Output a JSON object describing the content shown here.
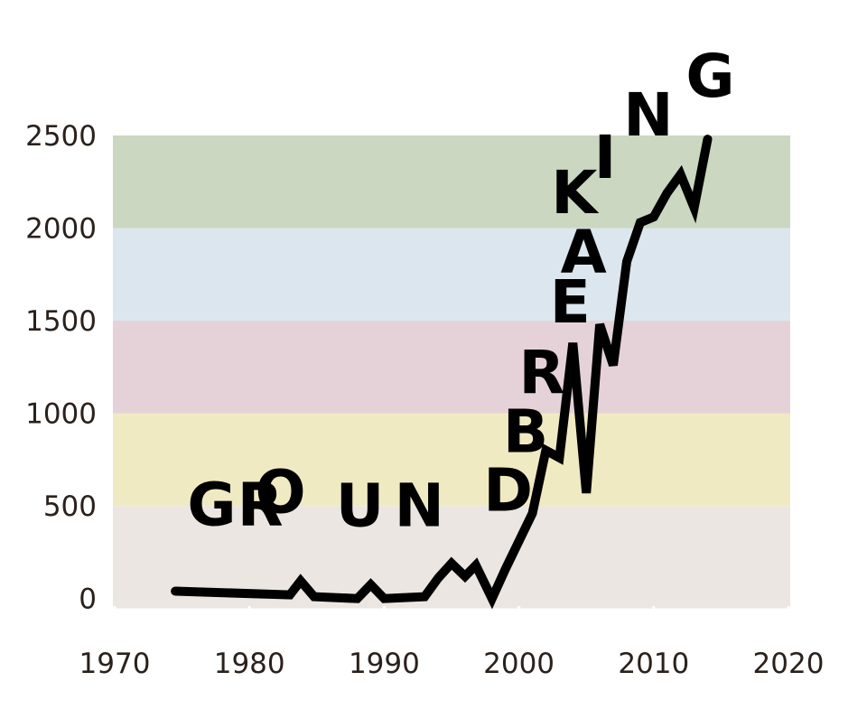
{
  "chart_data": {
    "type": "line",
    "title": "",
    "xlabel": "",
    "ylabel": "",
    "xlim": [
      1970,
      2020
    ],
    "ylim": [
      -60,
      2500
    ],
    "x_ticks": [
      "1970",
      "1980",
      "1990",
      "2000",
      "2010",
      "2020"
    ],
    "y_ticks": [
      "0",
      "500",
      "1000",
      "1500",
      "2000",
      "2500"
    ],
    "grid": false,
    "legend": "none",
    "bands": [
      {
        "from": -60,
        "to": 500,
        "color": "#ebe6e1"
      },
      {
        "from": 500,
        "to": 1000,
        "color": "#f0eac2"
      },
      {
        "from": 1000,
        "to": 1500,
        "color": "#e5d2d8"
      },
      {
        "from": 1500,
        "to": 2000,
        "color": "#dce6ee"
      },
      {
        "from": 2000,
        "to": 2500,
        "color": "#cbd7c0"
      }
    ],
    "line_color": "#000000",
    "series": [
      {
        "values": [
          {
            "x": 1974.5,
            "y": 40
          },
          {
            "x": 1983,
            "y": 20
          },
          {
            "x": 1983.8,
            "y": 95
          },
          {
            "x": 1984.8,
            "y": 10
          },
          {
            "x": 1988,
            "y": 0
          },
          {
            "x": 1989,
            "y": 75
          },
          {
            "x": 1990,
            "y": 0
          },
          {
            "x": 1993,
            "y": 10
          },
          {
            "x": 1994,
            "y": 110
          },
          {
            "x": 1995,
            "y": 190
          },
          {
            "x": 1996,
            "y": 120
          },
          {
            "x": 1996.8,
            "y": 180
          },
          {
            "x": 1998,
            "y": 0
          },
          {
            "x": 1999,
            "y": 160
          },
          {
            "x": 2001,
            "y": 460
          },
          {
            "x": 2002,
            "y": 800
          },
          {
            "x": 2003,
            "y": 760
          },
          {
            "x": 2004,
            "y": 1380
          },
          {
            "x": 2005,
            "y": 570
          },
          {
            "x": 2006,
            "y": 1480
          },
          {
            "x": 2007,
            "y": 1260
          },
          {
            "x": 2008,
            "y": 1820
          },
          {
            "x": 2009,
            "y": 2030
          },
          {
            "x": 2010,
            "y": 2060
          },
          {
            "x": 2011,
            "y": 2190
          },
          {
            "x": 2012,
            "y": 2290
          },
          {
            "x": 2013,
            "y": 2110
          },
          {
            "x": 2014,
            "y": 2480
          }
        ]
      }
    ],
    "annotations": [
      {
        "text": "G",
        "x": 1977.2,
        "y": 395
      },
      {
        "text": "R",
        "x": 1980.8,
        "y": 395
      },
      {
        "text": "O",
        "x": 1982.3,
        "y": 465
      },
      {
        "text": "U",
        "x": 1988.2,
        "y": 390
      },
      {
        "text": "N",
        "x": 1992.6,
        "y": 390
      },
      {
        "text": "D",
        "x": 1999.2,
        "y": 475
      },
      {
        "text": "B",
        "x": 2000.5,
        "y": 790
      },
      {
        "text": "R",
        "x": 2001.7,
        "y": 1110
      },
      {
        "text": "E",
        "x": 2003.8,
        "y": 1490
      },
      {
        "text": "A",
        "x": 2004.8,
        "y": 1760
      },
      {
        "text": "K",
        "x": 2004.1,
        "y": 2080
      },
      {
        "text": "I",
        "x": 2006.4,
        "y": 2270
      },
      {
        "text": "N",
        "x": 2009.6,
        "y": 2500
      },
      {
        "text": "G",
        "x": 2014.2,
        "y": 2710
      }
    ]
  }
}
